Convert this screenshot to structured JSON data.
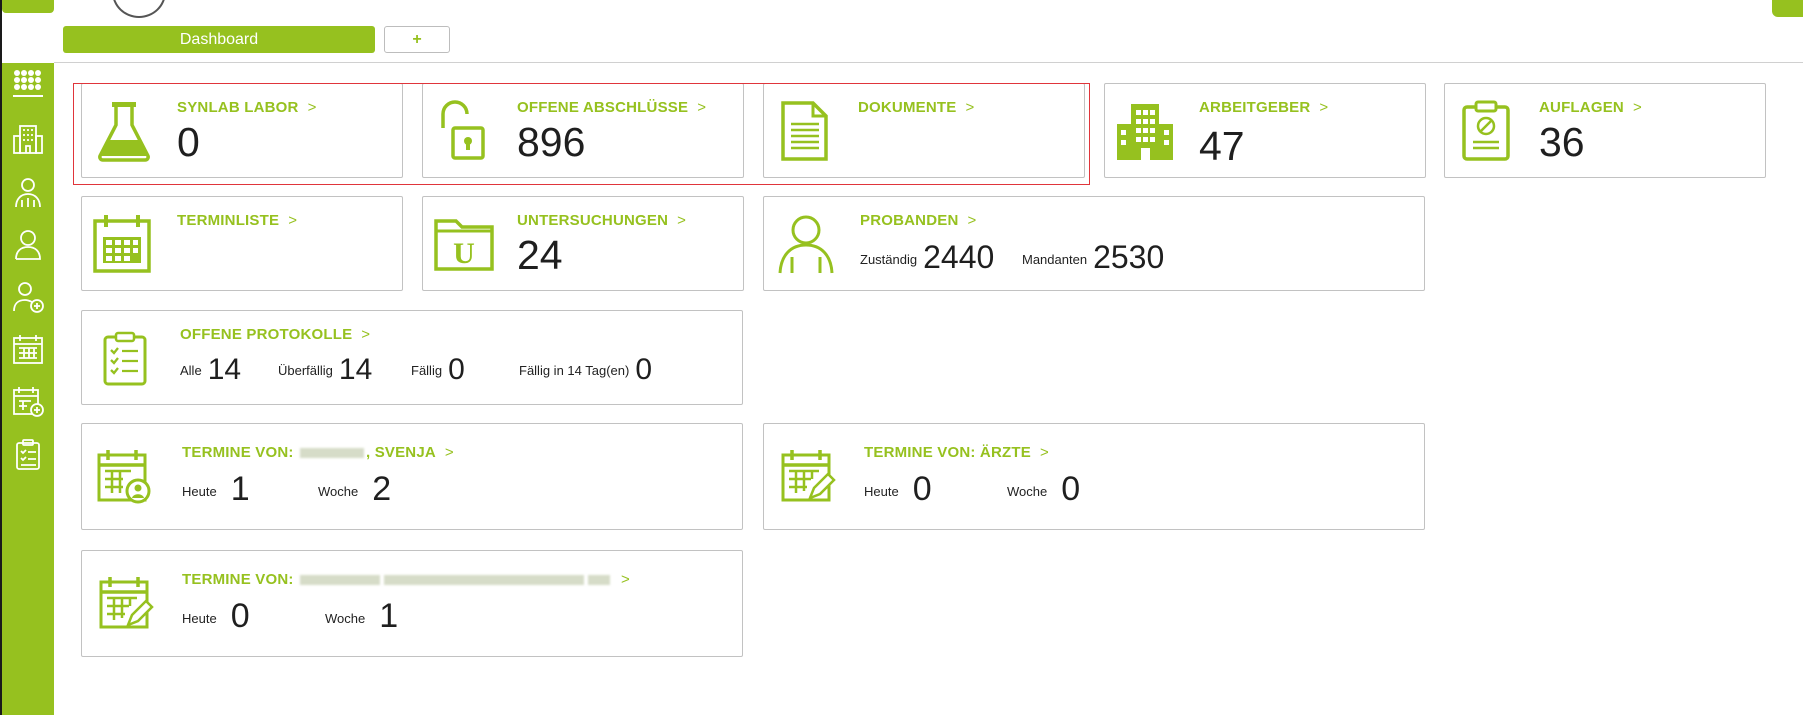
{
  "colors": {
    "accent": "#96c11f",
    "highlight": "#e0353b"
  },
  "tabs": {
    "dashboard_label": "Dashboard",
    "add_label": "+"
  },
  "sidebar": {
    "items": [
      {
        "icon": "grid-icon"
      },
      {
        "icon": "building-icon"
      },
      {
        "icon": "person-group-icon"
      },
      {
        "icon": "person-icon"
      },
      {
        "icon": "person-add-icon"
      },
      {
        "icon": "calendar-icon"
      },
      {
        "icon": "calendar-add-icon"
      },
      {
        "icon": "checklist-icon"
      }
    ]
  },
  "cards": {
    "synlab": {
      "title": "SYNLAB LABOR",
      "value": "0",
      "icon": "flask-icon"
    },
    "offene_abschluesse": {
      "title": "OFFENE ABSCHLÜSSE",
      "value": "896",
      "icon": "unlock-icon"
    },
    "dokumente": {
      "title": "DOKUMENTE",
      "icon": "document-icon"
    },
    "arbeitgeber": {
      "title": "ARBEITGEBER",
      "value": "47",
      "icon": "building-icon"
    },
    "auflagen": {
      "title": "AUFLAGEN",
      "value": "36",
      "icon": "clipboard-forbidden-icon"
    },
    "terminliste": {
      "title": "TERMINLISTE",
      "icon": "calendar-icon"
    },
    "untersuchungen": {
      "title": "UNTERSUCHUNGEN",
      "value": "24",
      "icon": "folder-u-icon"
    },
    "probanden": {
      "title": "PROBANDEN",
      "icon": "person-icon",
      "zustaendig_label": "Zuständig",
      "zustaendig_value": "2440",
      "mandanten_label": "Mandanten",
      "mandanten_value": "2530"
    },
    "offene_protokolle": {
      "title": "OFFENE PROTOKOLLE",
      "icon": "checklist-icon",
      "alle_label": "Alle",
      "alle_value": "14",
      "ueberfaellig_label": "Überfällig",
      "ueberfaellig_value": "14",
      "faellig_label": "Fällig",
      "faellig_value": "0",
      "faellig14_label": "Fällig in 14 Tag(en)",
      "faellig14_value": "0"
    },
    "termine_svenja": {
      "title_prefix": "TERMINE VON:",
      "title_suffix": ", SVENJA",
      "icon": "calendar-person-icon",
      "heute_label": "Heute",
      "heute_value": "1",
      "woche_label": "Woche",
      "woche_value": "2"
    },
    "termine_aerzte": {
      "title": "TERMINE VON: ÄRZTE",
      "icon": "calendar-edit-icon",
      "heute_label": "Heute",
      "heute_value": "0",
      "woche_label": "Woche",
      "woche_value": "0"
    },
    "termine_other": {
      "title_prefix": "TERMINE VON:",
      "icon": "calendar-edit-icon",
      "heute_label": "Heute",
      "heute_value": "0",
      "woche_label": "Woche",
      "woche_value": "1"
    }
  }
}
